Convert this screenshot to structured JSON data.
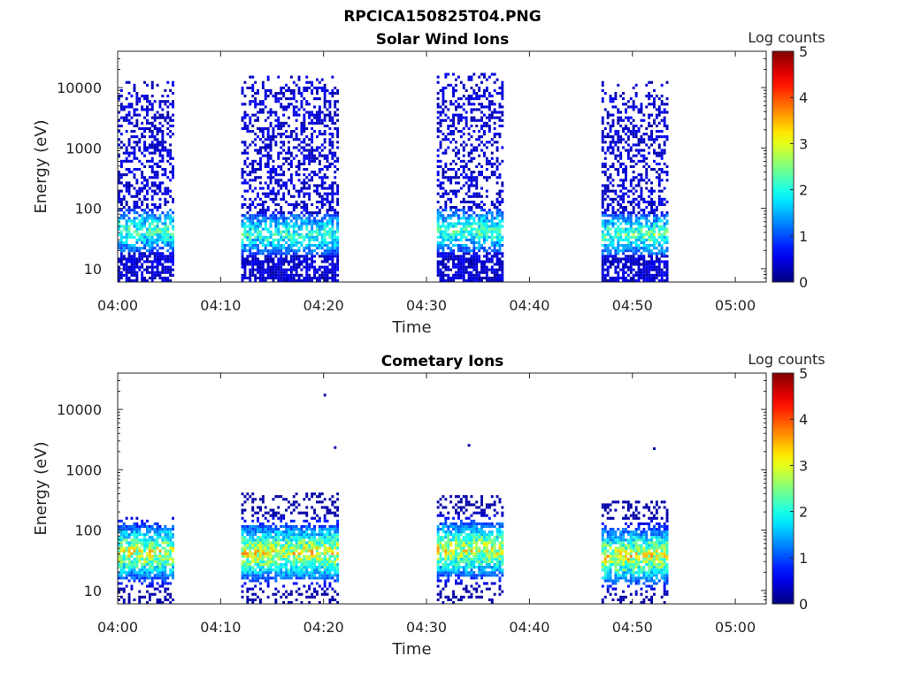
{
  "figure": {
    "title": "RPCICA150825T04.PNG"
  },
  "chart_data": [
    {
      "type": "heatmap",
      "title": "Solar Wind Ions",
      "xlabel": "Time",
      "ylabel": "Energy (eV)",
      "y_scale": "log",
      "ylim": [
        6,
        40000
      ],
      "xlim": [
        "04:00",
        "05:03"
      ],
      "x_ticks": [
        "04:00",
        "04:10",
        "04:20",
        "04:30",
        "04:40",
        "04:50",
        "05:00"
      ],
      "y_ticks": [
        "10",
        "100",
        "1000",
        "10000"
      ],
      "y_tick_values": [
        10,
        100,
        1000,
        10000
      ],
      "colorbar": {
        "label": "Log counts",
        "range": [
          0,
          5
        ],
        "ticks": [
          "0",
          "1",
          "2",
          "3",
          "4",
          "5"
        ]
      },
      "colormap": "jet",
      "data_intervals": [
        {
          "start": "04:00",
          "end": "04:05",
          "peak_energy_ev": 40,
          "peak_log_counts": 2.8,
          "max_energy_ev": 12000
        },
        {
          "start": "04:12",
          "end": "04:21",
          "peak_energy_ev": 35,
          "peak_log_counts": 2.7,
          "max_energy_ev": 15000
        },
        {
          "start": "04:31",
          "end": "04:37",
          "peak_energy_ev": 40,
          "peak_log_counts": 2.8,
          "max_energy_ev": 16000
        },
        {
          "start": "04:47",
          "end": "04:53",
          "peak_energy_ev": 35,
          "peak_log_counts": 2.9,
          "max_energy_ev": 12000
        }
      ]
    },
    {
      "type": "heatmap",
      "title": "Cometary Ions",
      "xlabel": "Time",
      "ylabel": "Energy (eV)",
      "y_scale": "log",
      "ylim": [
        6,
        40000
      ],
      "xlim": [
        "04:00",
        "05:03"
      ],
      "x_ticks": [
        "04:00",
        "04:10",
        "04:20",
        "04:30",
        "04:40",
        "04:50",
        "05:00"
      ],
      "y_ticks": [
        "10",
        "100",
        "1000",
        "10000"
      ],
      "y_tick_values": [
        10,
        100,
        1000,
        10000
      ],
      "colorbar": {
        "label": "Log counts",
        "range": [
          0,
          5
        ],
        "ticks": [
          "0",
          "1",
          "2",
          "3",
          "4",
          "5"
        ]
      },
      "colormap": "jet",
      "data_intervals": [
        {
          "start": "04:00",
          "end": "04:05",
          "peak_energy_ev": 40,
          "peak_log_counts": 3.8,
          "max_energy_ev": 160
        },
        {
          "start": "04:12",
          "end": "04:21",
          "peak_energy_ev": 40,
          "peak_log_counts": 3.9,
          "max_energy_ev": 380
        },
        {
          "start": "04:31",
          "end": "04:37",
          "peak_energy_ev": 45,
          "peak_log_counts": 3.8,
          "max_energy_ev": 360
        },
        {
          "start": "04:47",
          "end": "04:53",
          "peak_energy_ev": 35,
          "peak_log_counts": 3.9,
          "max_energy_ev": 300
        }
      ],
      "isolated_points": [
        {
          "time": "04:20",
          "energy_ev": 17000
        },
        {
          "time": "04:21",
          "energy_ev": 2300
        },
        {
          "time": "04:34",
          "energy_ev": 2500
        },
        {
          "time": "04:52",
          "energy_ev": 2200
        }
      ]
    }
  ]
}
